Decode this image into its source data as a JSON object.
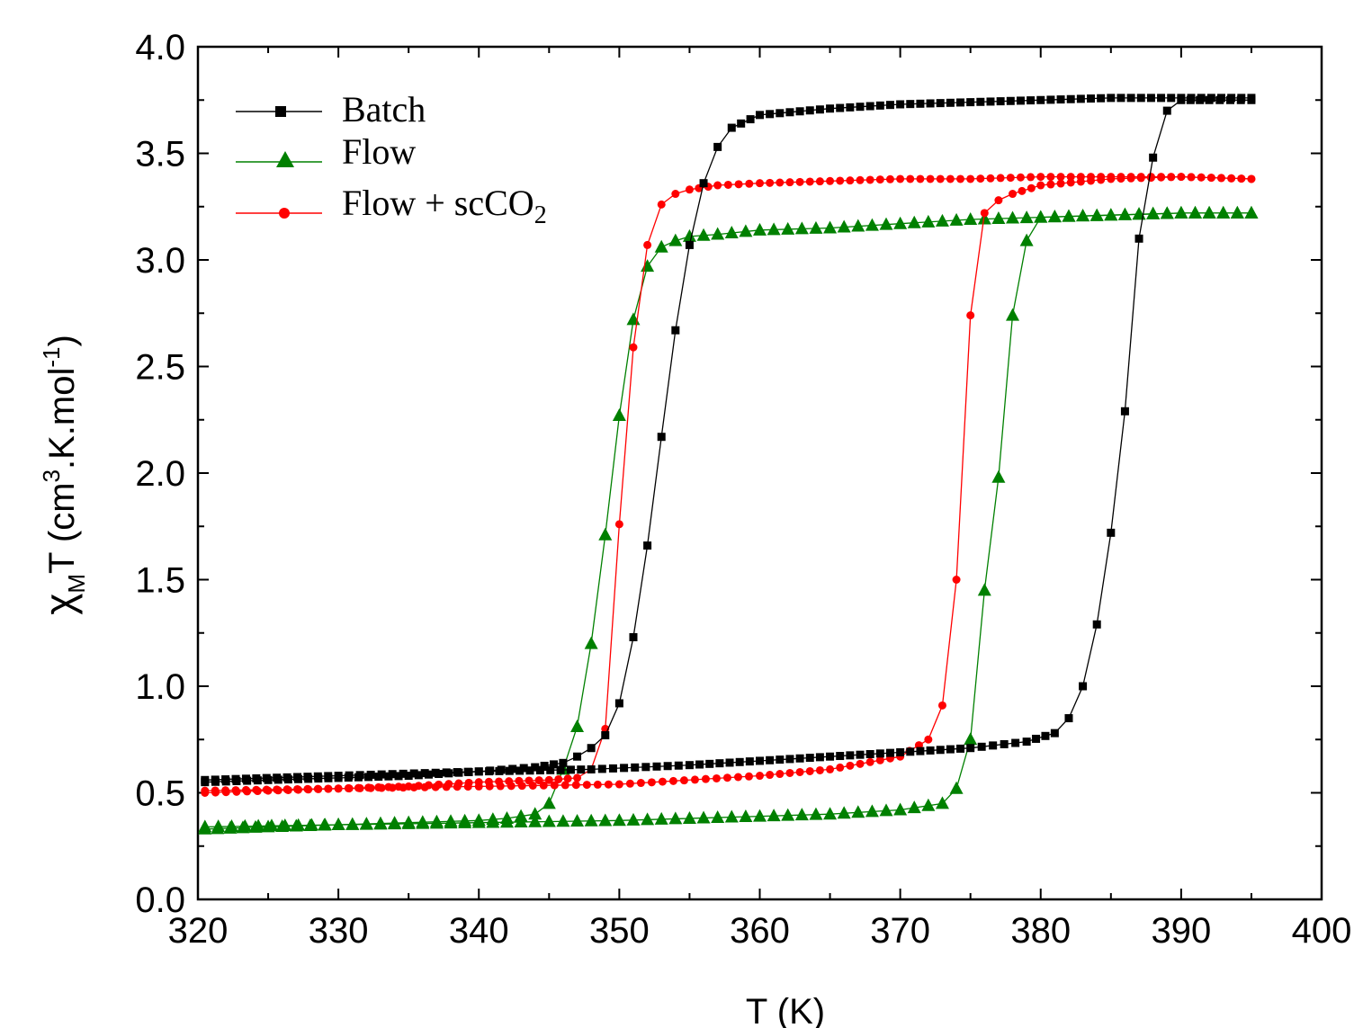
{
  "chart_data": {
    "type": "scatter",
    "xlabel": "T (K)",
    "ylabel": {
      "main": "χ",
      "sub": "M",
      "rest": "T (cm",
      "sup1": "3",
      "rest2": ".K.mol",
      "sup2": "-1",
      "close": ")"
    },
    "xlim": [
      320,
      400
    ],
    "ylim": [
      0.0,
      4.0
    ],
    "x_ticks": [
      "320",
      "330",
      "340",
      "350",
      "360",
      "370",
      "380",
      "390",
      "400"
    ],
    "y_ticks": [
      "0.0",
      "0.5",
      "1.0",
      "1.5",
      "2.0",
      "2.5",
      "3.0",
      "3.5",
      "4.0"
    ],
    "grid": false,
    "legend_position": "top-left",
    "legend": [
      {
        "label": "Batch"
      },
      {
        "label": "Flow"
      },
      {
        "label": "Flow + scCO",
        "sub": "2"
      }
    ],
    "series": [
      {
        "name": "Batch",
        "color": "#000000",
        "marker": "square",
        "cooling": {
          "x": [
            395,
            390,
            385,
            380,
            375,
            370,
            365,
            360,
            358,
            357,
            356,
            355,
            354,
            353,
            352,
            351,
            350,
            349,
            348,
            347,
            346,
            344,
            340,
            335,
            330,
            325,
            320.5
          ],
          "y": [
            3.76,
            3.76,
            3.76,
            3.75,
            3.74,
            3.73,
            3.71,
            3.68,
            3.62,
            3.53,
            3.36,
            3.07,
            2.67,
            2.17,
            1.66,
            1.23,
            0.92,
            0.77,
            0.71,
            0.67,
            0.64,
            0.62,
            0.6,
            0.58,
            0.57,
            0.56,
            0.55
          ]
        },
        "heating": {
          "x": [
            320.5,
            330,
            340,
            348,
            355,
            360,
            365,
            370,
            375,
            379,
            381,
            382,
            383,
            384,
            385,
            386,
            387,
            388,
            389,
            390,
            392,
            395
          ],
          "y": [
            0.56,
            0.58,
            0.6,
            0.61,
            0.63,
            0.65,
            0.67,
            0.69,
            0.71,
            0.74,
            0.78,
            0.85,
            1.0,
            1.29,
            1.72,
            2.29,
            3.1,
            3.48,
            3.7,
            3.75,
            3.75,
            3.75
          ]
        }
      },
      {
        "name": "Flow",
        "color": "#008000",
        "marker": "triangle",
        "cooling": {
          "x": [
            395,
            390,
            385,
            380,
            375,
            370,
            365,
            360,
            357,
            355,
            354,
            353,
            352,
            351,
            350,
            349,
            348,
            347,
            346,
            345,
            344,
            342,
            340,
            335,
            330,
            325,
            320.5
          ],
          "y": [
            3.22,
            3.22,
            3.21,
            3.2,
            3.19,
            3.17,
            3.15,
            3.14,
            3.12,
            3.11,
            3.09,
            3.06,
            2.97,
            2.72,
            2.27,
            1.71,
            1.2,
            0.81,
            0.61,
            0.45,
            0.4,
            0.38,
            0.37,
            0.36,
            0.35,
            0.34,
            0.33
          ]
        },
        "heating": {
          "x": [
            320.5,
            330,
            340,
            350,
            360,
            365,
            370,
            373,
            374,
            375,
            376,
            377,
            378,
            379,
            380,
            385,
            390,
            395
          ],
          "y": [
            0.34,
            0.35,
            0.36,
            0.37,
            0.39,
            0.4,
            0.42,
            0.45,
            0.52,
            0.75,
            1.45,
            1.98,
            2.74,
            3.09,
            3.2,
            3.21,
            3.22,
            3.22
          ]
        }
      },
      {
        "name": "Flow + scCO2",
        "color": "#ff0000",
        "marker": "circle",
        "cooling": {
          "x": [
            395,
            390,
            385,
            380,
            375,
            370,
            365,
            360,
            357,
            355,
            354,
            353,
            352,
            351,
            350,
            349,
            348,
            347,
            345,
            340,
            335,
            330,
            325,
            320.5
          ],
          "y": [
            3.38,
            3.39,
            3.39,
            3.39,
            3.38,
            3.38,
            3.37,
            3.36,
            3.35,
            3.33,
            3.31,
            3.26,
            3.07,
            2.59,
            1.76,
            0.8,
            0.61,
            0.57,
            0.56,
            0.55,
            0.53,
            0.52,
            0.51,
            0.5
          ]
        },
        "heating": {
          "x": [
            320.5,
            330,
            340,
            350,
            360,
            365,
            370,
            372,
            373,
            374,
            375,
            376,
            377,
            378,
            380,
            385,
            390,
            395
          ],
          "y": [
            0.51,
            0.52,
            0.53,
            0.54,
            0.58,
            0.61,
            0.67,
            0.75,
            0.91,
            1.5,
            2.74,
            3.22,
            3.28,
            3.31,
            3.35,
            3.38,
            3.39,
            3.38
          ]
        }
      }
    ]
  }
}
